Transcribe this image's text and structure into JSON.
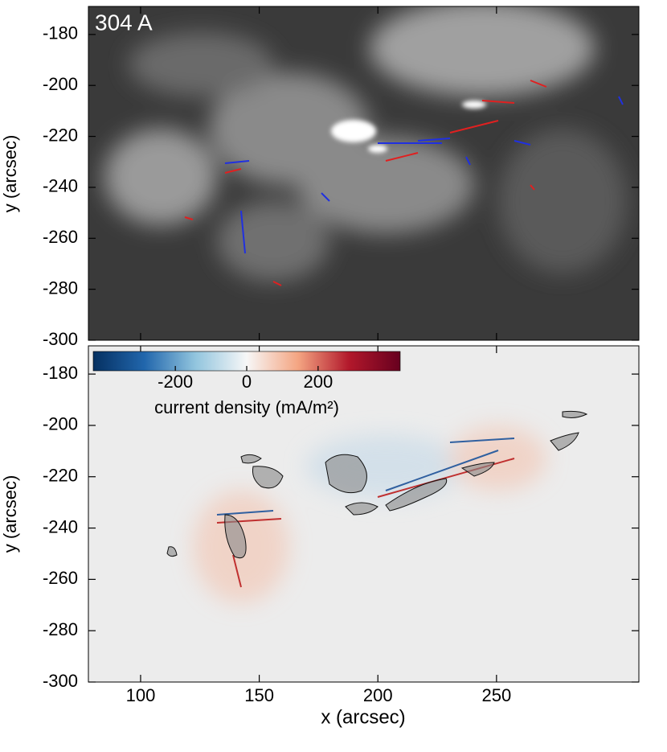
{
  "chart_data": [
    {
      "type": "image",
      "label": "304 A",
      "ylabel": "y (arcsec)",
      "xlim": [
        78,
        310
      ],
      "ylim": [
        -300,
        -169
      ],
      "xticks": [
        100,
        150,
        200,
        250
      ],
      "yticks": [
        -180,
        -200,
        -220,
        -240,
        -260,
        -280,
        -300
      ]
    },
    {
      "type": "image",
      "ylabel": "y (arcsec)",
      "xlabel": "x (arcsec)",
      "xlim": [
        78,
        310
      ],
      "ylim": [
        -300,
        -169
      ],
      "xticks": [
        100,
        150,
        200,
        250
      ],
      "yticks": [
        -180,
        -200,
        -220,
        -240,
        -260,
        -280,
        -300
      ],
      "colorbar": {
        "label": "current density (mA/m²)",
        "lim": [
          -430,
          430
        ],
        "ticks": [
          -200,
          0,
          200
        ],
        "colors": [
          "#053061",
          "#2166ac",
          "#92c5de",
          "#f7f7f7",
          "#f4a582",
          "#b2182b",
          "#67001f"
        ]
      }
    }
  ]
}
